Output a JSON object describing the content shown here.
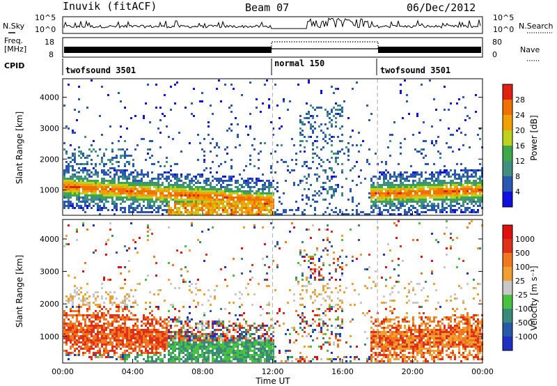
{
  "header": {
    "title": "Inuvik (fitACF)",
    "beam": "Beam 07",
    "date": "06/Dec/2012"
  },
  "nsky_panel": {
    "left_label": "N.Sky",
    "right_label": "N.Search",
    "left_ticks": [
      "10^5",
      "10^0"
    ],
    "right_ticks": [
      "10^5",
      "10^0"
    ]
  },
  "freq_panel": {
    "left_label_1": "Freq.",
    "left_label_2": "[MHz]",
    "right_label": "Nave",
    "left_ticks": [
      "18",
      "8"
    ],
    "right_ticks": [
      "80",
      "0"
    ]
  },
  "cpid": {
    "label": "CPID",
    "segments": [
      {
        "label": "twofsound 3501",
        "start_hour": 0,
        "end_hour": 12
      },
      {
        "label": "normal 150",
        "start_hour": 12,
        "end_hour": 18
      },
      {
        "label": "twofsound 3501",
        "start_hour": 18,
        "end_hour": 24
      }
    ]
  },
  "power_panel": {
    "ylabel": "Slant Range [km]",
    "cbar_label": "Power [dB]",
    "cbar_ticks": [
      "28",
      "24",
      "20",
      "16",
      "12",
      "8",
      "4"
    ]
  },
  "velocity_panel": {
    "ylabel": "Slant Range [km]",
    "cbar_label": "Velocity [m s⁻¹]",
    "cbar_ticks": [
      "1000",
      "500",
      "100",
      "25",
      "-25",
      "-100",
      "-500",
      "-1000"
    ]
  },
  "xaxis": {
    "label": "Time UT",
    "ticks": [
      "00:00",
      "04:00",
      "08:00",
      "12:00",
      "16:00",
      "20:00",
      "00:00"
    ]
  },
  "chart_data": [
    {
      "type": "heatmap",
      "title": "Power",
      "xlabel": "Time UT",
      "ylabel": "Slant Range [km]",
      "xlim": [
        0,
        24
      ],
      "ylim": [
        180,
        4600
      ],
      "yticks": [
        1000,
        2000,
        3000,
        4000
      ],
      "colorbar": {
        "label": "Power [dB]",
        "ticks": [
          4,
          8,
          12,
          16,
          20,
          24,
          28
        ],
        "range": [
          0,
          32
        ]
      },
      "colors": [
        "#1010e0",
        "#2858b0",
        "#3f9080",
        "#3ca848",
        "#c0d020",
        "#f0a000",
        "#f07000",
        "#e02010"
      ]
    },
    {
      "type": "heatmap",
      "title": "Velocity",
      "xlabel": "Time UT",
      "ylabel": "Slant Range [km]",
      "xlim": [
        0,
        24
      ],
      "ylim": [
        180,
        4600
      ],
      "yticks": [
        1000,
        2000,
        3000,
        4000
      ],
      "colorbar": {
        "label": "Velocity [m s⁻¹]",
        "ticks": [
          -1000,
          -500,
          -100,
          -25,
          25,
          100,
          500,
          1000
        ]
      },
      "colors": [
        "#2030c0",
        "#2858a8",
        "#3a8a7a",
        "#48c040",
        "#c8c8c8",
        "#f0a030",
        "#f07820",
        "#e03018",
        "#e01010"
      ]
    }
  ]
}
